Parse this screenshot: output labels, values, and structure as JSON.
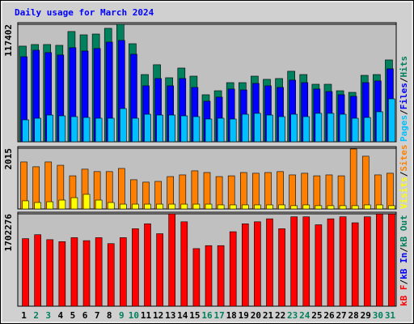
{
  "title": "Daily usage for March 2024",
  "legend_separator": "/",
  "chart_data": [
    {
      "type": "bar",
      "ylim": [
        0,
        117402
      ],
      "yticks": [
        117402
      ],
      "series": [
        {
          "name": "Hits",
          "color": "#00805c",
          "values": [
            95600,
            97200,
            97200,
            96400,
            110200,
            106900,
            107700,
            113400,
            117402,
            98000,
            67200,
            77000,
            64000,
            73700,
            65600,
            47000,
            51000,
            59100,
            59100,
            65600,
            62400,
            63200,
            70500,
            67200,
            57500,
            57500,
            51000,
            49400,
            66400,
            67200,
            81800
          ]
        },
        {
          "name": "Files",
          "color": "#0000ff",
          "values": [
            85000,
            91500,
            89100,
            86700,
            94000,
            90700,
            93200,
            99600,
            101300,
            87500,
            55900,
            63200,
            55900,
            63200,
            54300,
            40500,
            44600,
            52700,
            51800,
            58300,
            55900,
            54300,
            61600,
            59100,
            52700,
            50200,
            47000,
            45400,
            59100,
            60800,
            72900
          ]
        },
        {
          "name": "Pages",
          "color": "#00c0ff",
          "values": [
            21900,
            23500,
            26700,
            25900,
            25100,
            24300,
            23500,
            23500,
            33200,
            23500,
            27500,
            26700,
            26700,
            25900,
            25100,
            22700,
            23500,
            22700,
            27500,
            28400,
            26700,
            25100,
            27500,
            25100,
            28400,
            28400,
            27500,
            23500,
            24300,
            30000,
            42900
          ]
        }
      ]
    },
    {
      "type": "bar",
      "ylim": [
        0,
        2015
      ],
      "yticks": [
        2015
      ],
      "series": [
        {
          "name": "Sites",
          "color": "#ff8000",
          "values": [
            1560,
            1400,
            1560,
            1450,
            1100,
            1320,
            1240,
            1240,
            1345,
            970,
            890,
            915,
            1075,
            1130,
            1265,
            1210,
            1075,
            1100,
            1210,
            1185,
            1210,
            1240,
            1130,
            1185,
            1100,
            1130,
            1100,
            1990,
            1750,
            1130,
            1185
          ]
        },
        {
          "name": "Visits",
          "color": "#ffff00",
          "values": [
            270,
            215,
            240,
            295,
            375,
            485,
            295,
            215,
            160,
            160,
            160,
            160,
            160,
            160,
            160,
            160,
            135,
            135,
            135,
            135,
            135,
            135,
            110,
            135,
            110,
            110,
            110,
            110,
            135,
            135,
            110
          ]
        }
      ]
    },
    {
      "type": "bar",
      "ylim": [
        0,
        1702276
      ],
      "yticks": [
        1702276
      ],
      "categories": [
        "1",
        "2",
        "3",
        "4",
        "5",
        "6",
        "7",
        "8",
        "9",
        "10",
        "11",
        "12",
        "13",
        "14",
        "15",
        "16",
        "17",
        "18",
        "19",
        "20",
        "21",
        "22",
        "23",
        "24",
        "25",
        "26",
        "27",
        "28",
        "29",
        "30",
        "31"
      ],
      "category_colors": [
        "#000000",
        "#00805c",
        "#00805c",
        "#000000",
        "#000000",
        "#000000",
        "#000000",
        "#000000",
        "#00805c",
        "#00805c",
        "#000000",
        "#000000",
        "#000000",
        "#000000",
        "#000000",
        "#00805c",
        "#00805c",
        "#000000",
        "#000000",
        "#000000",
        "#000000",
        "#000000",
        "#00805c",
        "#00805c",
        "#000000",
        "#000000",
        "#000000",
        "#000000",
        "#000000",
        "#00805c",
        "#00805c"
      ],
      "series": [
        {
          "name": "kB Out",
          "color": "#00805c",
          "values": [
            0,
            0,
            0,
            0,
            0,
            0,
            0,
            0,
            0,
            0,
            0,
            0,
            0,
            0,
            0,
            0,
            0,
            0,
            0,
            0,
            0,
            0,
            0,
            0,
            0,
            0,
            0,
            0,
            0,
            0,
            0
          ]
        },
        {
          "name": "kB In",
          "color": "#0000ff",
          "values": [
            0,
            0,
            0,
            0,
            0,
            0,
            0,
            0,
            0,
            0,
            0,
            0,
            0,
            0,
            0,
            0,
            0,
            0,
            0,
            0,
            0,
            0,
            0,
            0,
            0,
            0,
            0,
            0,
            0,
            0,
            0
          ]
        },
        {
          "name": "kB F",
          "color": "#ff0000",
          "values": [
            1244700,
            1317900,
            1226400,
            1189800,
            1263000,
            1208100,
            1263000,
            1153200,
            1263000,
            1427700,
            1519200,
            1336200,
            1702276,
            1555800,
            1061600,
            1116500,
            1116500,
            1372800,
            1519200,
            1555800,
            1610800,
            1427700,
            1647400,
            1647400,
            1500900,
            1610800,
            1647400,
            1537500,
            1647400,
            1700000,
            1700000
          ]
        }
      ]
    }
  ]
}
